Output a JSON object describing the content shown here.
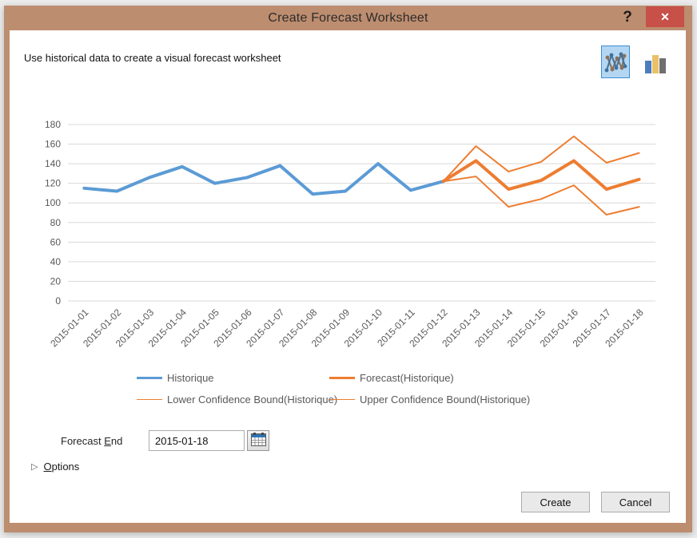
{
  "window": {
    "title": "Create Forecast Worksheet",
    "help_glyph": "?",
    "close_glyph": "✕"
  },
  "header": {
    "subtitle": "Use historical data to create a visual forecast worksheet"
  },
  "chart_type_picker": {
    "selected": "line-chart",
    "options": [
      "line-chart",
      "bar-chart"
    ]
  },
  "chart_data": {
    "type": "line",
    "x": [
      "2015-01-01",
      "2015-01-02",
      "2015-01-03",
      "2015-01-04",
      "2015-01-05",
      "2015-01-06",
      "2015-01-07",
      "2015-01-08",
      "2015-01-09",
      "2015-01-10",
      "2015-01-11",
      "2015-01-12",
      "2015-01-13",
      "2015-01-14",
      "2015-01-15",
      "2015-01-16",
      "2015-01-17",
      "2015-01-18"
    ],
    "series": [
      {
        "name": "Historique",
        "color": "#5b9bd5",
        "width": 4,
        "values": [
          115,
          112,
          126,
          137,
          120,
          126,
          138,
          109,
          112,
          140,
          113,
          122,
          null,
          null,
          null,
          null,
          null,
          null
        ]
      },
      {
        "name": "Forecast(Historique)",
        "color": "#ed7d31",
        "width": 4,
        "values": [
          null,
          null,
          null,
          null,
          null,
          null,
          null,
          null,
          null,
          null,
          null,
          122,
          143,
          114,
          123,
          143,
          114,
          124
        ]
      },
      {
        "name": "Lower Confidence Bound(Historique)",
        "color": "#ed7d31",
        "width": 2,
        "values": [
          null,
          null,
          null,
          null,
          null,
          null,
          null,
          null,
          null,
          null,
          null,
          122,
          127,
          96,
          104,
          118,
          88,
          96
        ]
      },
      {
        "name": "Upper Confidence Bound(Historique)",
        "color": "#ed7d31",
        "width": 2,
        "values": [
          null,
          null,
          null,
          null,
          null,
          null,
          null,
          null,
          null,
          null,
          null,
          122,
          158,
          132,
          142,
          168,
          141,
          151
        ]
      }
    ],
    "ylim": [
      0,
      180
    ],
    "ytick_step": 20,
    "grid": true,
    "legend_position": "bottom",
    "title": "",
    "xlabel": "",
    "ylabel": ""
  },
  "forecast_end": {
    "label_pre": "Forecast ",
    "label_accel": "E",
    "label_post": "nd",
    "value": "2015-01-18"
  },
  "options": {
    "triangle_glyph": "▷",
    "accel": "O",
    "rest": "ptions"
  },
  "buttons": {
    "create": "Create",
    "cancel": "Cancel"
  },
  "colors": {
    "titlebar": "#bd8d6f",
    "close": "#c75049",
    "select-bg": "#b3d6f2",
    "select-border": "#3e8ed6",
    "grid": "#d9d9d9",
    "axis-text": "#595959"
  }
}
